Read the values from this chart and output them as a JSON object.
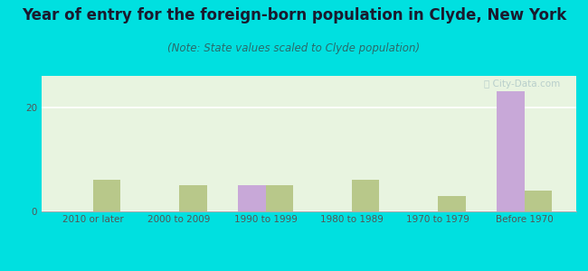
{
  "title": "Year of entry for the foreign-born population in Clyde, New York",
  "subtitle": "(Note: State values scaled to Clyde population)",
  "categories": [
    "2010 or later",
    "2000 to 2009",
    "1990 to 1999",
    "1980 to 1989",
    "1970 to 1979",
    "Before 1970"
  ],
  "clyde_values": [
    0,
    0,
    5,
    0,
    0,
    23
  ],
  "newyork_values": [
    6,
    5,
    5,
    6,
    3,
    4
  ],
  "clyde_color": "#c8a8d8",
  "newyork_color": "#b8c88a",
  "background_outer": "#00e0e0",
  "background_plot": "#e8f4e0",
  "ylim": [
    0,
    26
  ],
  "yticks": [
    0,
    20
  ],
  "bar_width": 0.32,
  "title_fontsize": 12,
  "subtitle_fontsize": 8.5,
  "tick_fontsize": 7.5,
  "legend_fontsize": 9,
  "title_color": "#1a1a2e",
  "subtitle_color": "#2a6a6a",
  "tick_color": "#555555"
}
